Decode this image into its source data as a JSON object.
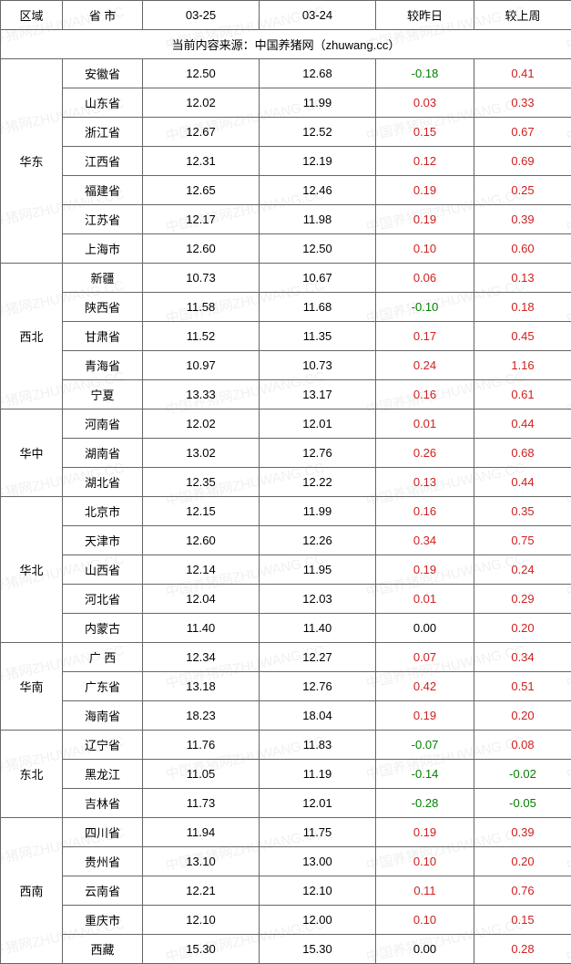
{
  "columns": [
    "区域",
    "省 市",
    "03-25",
    "03-24",
    "较昨日",
    "较上周"
  ],
  "source_line": "当前内容来源：中国养猪网（zhuwang.cc）",
  "watermark_text": "中国养猪网ZHUWANG.CC",
  "colors": {
    "border": "#666666",
    "positive": "#d02020",
    "negative": "#008000",
    "neutral": "#000000",
    "background": "#ffffff"
  },
  "regions": [
    {
      "name": "华东",
      "rows": [
        {
          "province": "安徽省",
          "d1": "12.50",
          "d2": "12.68",
          "dd": "-0.18",
          "dw": "0.41"
        },
        {
          "province": "山东省",
          "d1": "12.02",
          "d2": "11.99",
          "dd": "0.03",
          "dw": "0.33"
        },
        {
          "province": "浙江省",
          "d1": "12.67",
          "d2": "12.52",
          "dd": "0.15",
          "dw": "0.67"
        },
        {
          "province": "江西省",
          "d1": "12.31",
          "d2": "12.19",
          "dd": "0.12",
          "dw": "0.69"
        },
        {
          "province": "福建省",
          "d1": "12.65",
          "d2": "12.46",
          "dd": "0.19",
          "dw": "0.25"
        },
        {
          "province": "江苏省",
          "d1": "12.17",
          "d2": "11.98",
          "dd": "0.19",
          "dw": "0.39"
        },
        {
          "province": "上海市",
          "d1": "12.60",
          "d2": "12.50",
          "dd": "0.10",
          "dw": "0.60"
        }
      ]
    },
    {
      "name": "西北",
      "rows": [
        {
          "province": "新疆",
          "d1": "10.73",
          "d2": "10.67",
          "dd": "0.06",
          "dw": "0.13"
        },
        {
          "province": "陕西省",
          "d1": "11.58",
          "d2": "11.68",
          "dd": "-0.10",
          "dw": "0.18"
        },
        {
          "province": "甘肃省",
          "d1": "11.52",
          "d2": "11.35",
          "dd": "0.17",
          "dw": "0.45"
        },
        {
          "province": "青海省",
          "d1": "10.97",
          "d2": "10.73",
          "dd": "0.24",
          "dw": "1.16"
        },
        {
          "province": "宁夏",
          "d1": "13.33",
          "d2": "13.17",
          "dd": "0.16",
          "dw": "0.61"
        }
      ]
    },
    {
      "name": "华中",
      "rows": [
        {
          "province": "河南省",
          "d1": "12.02",
          "d2": "12.01",
          "dd": "0.01",
          "dw": "0.44"
        },
        {
          "province": "湖南省",
          "d1": "13.02",
          "d2": "12.76",
          "dd": "0.26",
          "dw": "0.68"
        },
        {
          "province": "湖北省",
          "d1": "12.35",
          "d2": "12.22",
          "dd": "0.13",
          "dw": "0.44"
        }
      ]
    },
    {
      "name": "华北",
      "rows": [
        {
          "province": "北京市",
          "d1": "12.15",
          "d2": "11.99",
          "dd": "0.16",
          "dw": "0.35"
        },
        {
          "province": "天津市",
          "d1": "12.60",
          "d2": "12.26",
          "dd": "0.34",
          "dw": "0.75"
        },
        {
          "province": "山西省",
          "d1": "12.14",
          "d2": "11.95",
          "dd": "0.19",
          "dw": "0.24"
        },
        {
          "province": "河北省",
          "d1": "12.04",
          "d2": "12.03",
          "dd": "0.01",
          "dw": "0.29"
        },
        {
          "province": "内蒙古",
          "d1": "11.40",
          "d2": "11.40",
          "dd": "0.00",
          "dw": "0.20"
        }
      ]
    },
    {
      "name": "华南",
      "rows": [
        {
          "province": "广 西",
          "d1": "12.34",
          "d2": "12.27",
          "dd": "0.07",
          "dw": "0.34"
        },
        {
          "province": "广东省",
          "d1": "13.18",
          "d2": "12.76",
          "dd": "0.42",
          "dw": "0.51"
        },
        {
          "province": "海南省",
          "d1": "18.23",
          "d2": "18.04",
          "dd": "0.19",
          "dw": "0.20"
        }
      ]
    },
    {
      "name": "东北",
      "rows": [
        {
          "province": "辽宁省",
          "d1": "11.76",
          "d2": "11.83",
          "dd": "-0.07",
          "dw": "0.08"
        },
        {
          "province": "黑龙江",
          "d1": "11.05",
          "d2": "11.19",
          "dd": "-0.14",
          "dw": "-0.02"
        },
        {
          "province": "吉林省",
          "d1": "11.73",
          "d2": "12.01",
          "dd": "-0.28",
          "dw": "-0.05"
        }
      ]
    },
    {
      "name": "西南",
      "rows": [
        {
          "province": "四川省",
          "d1": "11.94",
          "d2": "11.75",
          "dd": "0.19",
          "dw": "0.39"
        },
        {
          "province": "贵州省",
          "d1": "13.10",
          "d2": "13.00",
          "dd": "0.10",
          "dw": "0.20"
        },
        {
          "province": "云南省",
          "d1": "12.21",
          "d2": "12.10",
          "dd": "0.11",
          "dw": "0.76"
        },
        {
          "province": "重庆市",
          "d1": "12.10",
          "d2": "12.00",
          "dd": "0.10",
          "dw": "0.15"
        },
        {
          "province": "西藏",
          "d1": "15.30",
          "d2": "15.30",
          "dd": "0.00",
          "dw": "0.28"
        }
      ]
    }
  ]
}
